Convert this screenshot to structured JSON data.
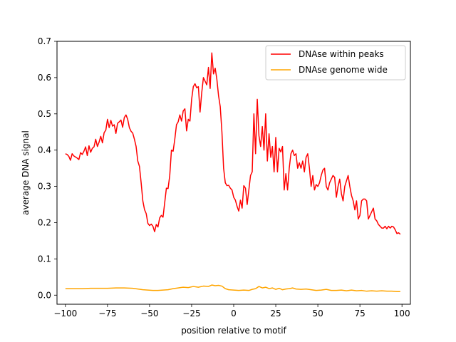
{
  "chart_data": {
    "type": "line",
    "title": "",
    "xlabel": "position relative to motif",
    "ylabel": "average DNA signal",
    "xlim": [
      -105,
      105
    ],
    "ylim": [
      -0.025,
      0.7
    ],
    "xticks": [
      -100,
      -75,
      -50,
      -25,
      0,
      25,
      50,
      75,
      100
    ],
    "xtick_labels": [
      "−100",
      "−75",
      "−50",
      "−25",
      "0",
      "25",
      "50",
      "75",
      "100"
    ],
    "yticks": [
      0.0,
      0.1,
      0.2,
      0.3,
      0.4,
      0.5,
      0.6,
      0.7
    ],
    "ytick_labels": [
      "0.0",
      "0.1",
      "0.2",
      "0.3",
      "0.4",
      "0.5",
      "0.6",
      "0.7"
    ],
    "grid": false,
    "legend_position": "top-right",
    "series": [
      {
        "name": "DNAse within peaks",
        "color": "#ff0000",
        "points": [
          [
            -100,
            0.39
          ],
          [
            -99,
            0.388
          ],
          [
            -98,
            0.383
          ],
          [
            -97,
            0.372
          ],
          [
            -96,
            0.39
          ],
          [
            -95,
            0.384
          ],
          [
            -94,
            0.381
          ],
          [
            -93,
            0.378
          ],
          [
            -92,
            0.374
          ],
          [
            -91,
            0.393
          ],
          [
            -90,
            0.388
          ],
          [
            -89,
            0.397
          ],
          [
            -88,
            0.409
          ],
          [
            -87,
            0.385
          ],
          [
            -86,
            0.412
          ],
          [
            -85,
            0.394
          ],
          [
            -84,
            0.405
          ],
          [
            -83,
            0.409
          ],
          [
            -82,
            0.43
          ],
          [
            -81,
            0.41
          ],
          [
            -80,
            0.422
          ],
          [
            -79,
            0.438
          ],
          [
            -78,
            0.42
          ],
          [
            -77,
            0.448
          ],
          [
            -76,
            0.455
          ],
          [
            -75,
            0.485
          ],
          [
            -74,
            0.462
          ],
          [
            -73,
            0.482
          ],
          [
            -72,
            0.466
          ],
          [
            -71,
            0.47
          ],
          [
            -70,
            0.446
          ],
          [
            -69,
            0.474
          ],
          [
            -68,
            0.478
          ],
          [
            -67,
            0.483
          ],
          [
            -66,
            0.463
          ],
          [
            -65,
            0.49
          ],
          [
            -64,
            0.497
          ],
          [
            -63,
            0.485
          ],
          [
            -62,
            0.462
          ],
          [
            -61,
            0.452
          ],
          [
            -60,
            0.447
          ],
          [
            -59,
            0.43
          ],
          [
            -58,
            0.41
          ],
          [
            -57,
            0.37
          ],
          [
            -56,
            0.355
          ],
          [
            -55,
            0.31
          ],
          [
            -54,
            0.26
          ],
          [
            -53,
            0.236
          ],
          [
            -52,
            0.225
          ],
          [
            -51,
            0.198
          ],
          [
            -50,
            0.192
          ],
          [
            -49,
            0.196
          ],
          [
            -48,
            0.19
          ],
          [
            -47,
            0.175
          ],
          [
            -46,
            0.195
          ],
          [
            -45,
            0.188
          ],
          [
            -44,
            0.213
          ],
          [
            -43,
            0.22
          ],
          [
            -42,
            0.215
          ],
          [
            -41,
            0.255
          ],
          [
            -40,
            0.295
          ],
          [
            -39,
            0.294
          ],
          [
            -38,
            0.33
          ],
          [
            -37,
            0.4
          ],
          [
            -36,
            0.397
          ],
          [
            -35,
            0.43
          ],
          [
            -34,
            0.47
          ],
          [
            -33,
            0.478
          ],
          [
            -32,
            0.497
          ],
          [
            -31,
            0.48
          ],
          [
            -30,
            0.508
          ],
          [
            -29,
            0.514
          ],
          [
            -28,
            0.453
          ],
          [
            -27,
            0.485
          ],
          [
            -26,
            0.48
          ],
          [
            -25,
            0.54
          ],
          [
            -24,
            0.575
          ],
          [
            -23,
            0.583
          ],
          [
            -22,
            0.572
          ],
          [
            -21,
            0.575
          ],
          [
            -20,
            0.505
          ],
          [
            -19,
            0.558
          ],
          [
            -18,
            0.6
          ],
          [
            -17,
            0.59
          ],
          [
            -16,
            0.58
          ],
          [
            -15,
            0.628
          ],
          [
            -14,
            0.57
          ],
          [
            -13,
            0.668
          ],
          [
            -12,
            0.61
          ],
          [
            -11,
            0.626
          ],
          [
            -10,
            0.595
          ],
          [
            -9,
            0.55
          ],
          [
            -8,
            0.52
          ],
          [
            -7,
            0.45
          ],
          [
            -6,
            0.35
          ],
          [
            -5,
            0.31
          ],
          [
            -4,
            0.302
          ],
          [
            -3,
            0.303
          ],
          [
            -2,
            0.295
          ],
          [
            -1,
            0.29
          ],
          [
            0,
            0.27
          ],
          [
            1,
            0.262
          ],
          [
            2,
            0.245
          ],
          [
            3,
            0.232
          ],
          [
            4,
            0.262
          ],
          [
            5,
            0.24
          ],
          [
            6,
            0.302
          ],
          [
            7,
            0.295
          ],
          [
            8,
            0.25
          ],
          [
            9,
            0.29
          ],
          [
            10,
            0.33
          ],
          [
            11,
            0.34
          ],
          [
            12,
            0.5
          ],
          [
            13,
            0.39
          ],
          [
            14,
            0.54
          ],
          [
            15,
            0.44
          ],
          [
            16,
            0.41
          ],
          [
            17,
            0.465
          ],
          [
            18,
            0.4
          ],
          [
            19,
            0.5
          ],
          [
            20,
            0.37
          ],
          [
            21,
            0.445
          ],
          [
            22,
            0.38
          ],
          [
            23,
            0.41
          ],
          [
            24,
            0.34
          ],
          [
            25,
            0.435
          ],
          [
            26,
            0.34
          ],
          [
            27,
            0.405
          ],
          [
            28,
            0.395
          ],
          [
            29,
            0.41
          ],
          [
            30,
            0.29
          ],
          [
            31,
            0.335
          ],
          [
            32,
            0.29
          ],
          [
            33,
            0.35
          ],
          [
            34,
            0.39
          ],
          [
            35,
            0.4
          ],
          [
            36,
            0.385
          ],
          [
            37,
            0.39
          ],
          [
            38,
            0.35
          ],
          [
            39,
            0.365
          ],
          [
            40,
            0.35
          ],
          [
            41,
            0.37
          ],
          [
            42,
            0.34
          ],
          [
            43,
            0.38
          ],
          [
            44,
            0.39
          ],
          [
            45,
            0.35
          ],
          [
            46,
            0.3
          ],
          [
            47,
            0.33
          ],
          [
            48,
            0.29
          ],
          [
            49,
            0.305
          ],
          [
            50,
            0.3
          ],
          [
            51,
            0.31
          ],
          [
            52,
            0.33
          ],
          [
            53,
            0.345
          ],
          [
            54,
            0.35
          ],
          [
            55,
            0.3
          ],
          [
            56,
            0.29
          ],
          [
            57,
            0.31
          ],
          [
            58,
            0.32
          ],
          [
            59,
            0.33
          ],
          [
            60,
            0.325
          ],
          [
            61,
            0.27
          ],
          [
            62,
            0.3
          ],
          [
            63,
            0.32
          ],
          [
            64,
            0.28
          ],
          [
            65,
            0.26
          ],
          [
            66,
            0.3
          ],
          [
            67,
            0.315
          ],
          [
            68,
            0.33
          ],
          [
            69,
            0.3
          ],
          [
            70,
            0.275
          ],
          [
            71,
            0.26
          ],
          [
            72,
            0.235
          ],
          [
            73,
            0.26
          ],
          [
            74,
            0.21
          ],
          [
            75,
            0.22
          ],
          [
            76,
            0.26
          ],
          [
            77,
            0.265
          ],
          [
            78,
            0.265
          ],
          [
            79,
            0.26
          ],
          [
            80,
            0.21
          ],
          [
            81,
            0.22
          ],
          [
            82,
            0.23
          ],
          [
            83,
            0.24
          ],
          [
            84,
            0.21
          ],
          [
            85,
            0.205
          ],
          [
            86,
            0.195
          ],
          [
            87,
            0.19
          ],
          [
            88,
            0.185
          ],
          [
            89,
            0.185
          ],
          [
            90,
            0.19
          ],
          [
            91,
            0.183
          ],
          [
            92,
            0.19
          ],
          [
            93,
            0.185
          ],
          [
            94,
            0.19
          ],
          [
            95,
            0.188
          ],
          [
            96,
            0.18
          ],
          [
            97,
            0.17
          ],
          [
            98,
            0.172
          ],
          [
            99,
            0.168
          ]
        ]
      },
      {
        "name": "DNAse genome wide",
        "color": "#ffa500",
        "points": [
          [
            -100,
            0.018
          ],
          [
            -95,
            0.018
          ],
          [
            -90,
            0.018
          ],
          [
            -85,
            0.019
          ],
          [
            -80,
            0.019
          ],
          [
            -75,
            0.019
          ],
          [
            -70,
            0.02
          ],
          [
            -65,
            0.02
          ],
          [
            -60,
            0.019
          ],
          [
            -57,
            0.017
          ],
          [
            -54,
            0.015
          ],
          [
            -51,
            0.014
          ],
          [
            -48,
            0.013
          ],
          [
            -45,
            0.013
          ],
          [
            -42,
            0.014
          ],
          [
            -39,
            0.015
          ],
          [
            -36,
            0.018
          ],
          [
            -33,
            0.02
          ],
          [
            -30,
            0.022
          ],
          [
            -27,
            0.021
          ],
          [
            -24,
            0.024
          ],
          [
            -21,
            0.022
          ],
          [
            -18,
            0.025
          ],
          [
            -15,
            0.024
          ],
          [
            -13,
            0.028
          ],
          [
            -11,
            0.026
          ],
          [
            -9,
            0.027
          ],
          [
            -7,
            0.025
          ],
          [
            -5,
            0.018
          ],
          [
            -3,
            0.015
          ],
          [
            0,
            0.014
          ],
          [
            3,
            0.013
          ],
          [
            6,
            0.014
          ],
          [
            9,
            0.013
          ],
          [
            11,
            0.016
          ],
          [
            13,
            0.018
          ],
          [
            15,
            0.024
          ],
          [
            17,
            0.02
          ],
          [
            19,
            0.022
          ],
          [
            21,
            0.018
          ],
          [
            23,
            0.02
          ],
          [
            25,
            0.016
          ],
          [
            27,
            0.019
          ],
          [
            29,
            0.015
          ],
          [
            31,
            0.017
          ],
          [
            33,
            0.018
          ],
          [
            35,
            0.02
          ],
          [
            37,
            0.017
          ],
          [
            40,
            0.016
          ],
          [
            43,
            0.017
          ],
          [
            46,
            0.015
          ],
          [
            49,
            0.013
          ],
          [
            52,
            0.014
          ],
          [
            55,
            0.016
          ],
          [
            58,
            0.013
          ],
          [
            61,
            0.013
          ],
          [
            64,
            0.014
          ],
          [
            67,
            0.012
          ],
          [
            70,
            0.014
          ],
          [
            73,
            0.012
          ],
          [
            76,
            0.013
          ],
          [
            79,
            0.011
          ],
          [
            82,
            0.012
          ],
          [
            85,
            0.011
          ],
          [
            88,
            0.012
          ],
          [
            91,
            0.011
          ],
          [
            94,
            0.011
          ],
          [
            97,
            0.01
          ],
          [
            99,
            0.01
          ]
        ]
      }
    ]
  }
}
